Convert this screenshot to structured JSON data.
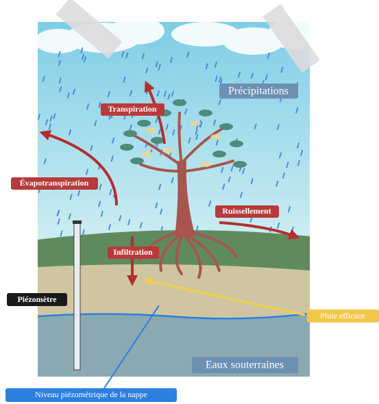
{
  "labels": {
    "precipitations": "Précipitations",
    "transpiration": "Transpiration",
    "evapotranspiration": "Évapotranspiration",
    "ruissellement": "Ruissellement",
    "infiltration": "Infiltration",
    "piezometre": "Piézomètre",
    "pluie_efficace": "Pluie efficace",
    "eaux_souterraines": "Eaux souterraines",
    "niveau": "Niveau piézométrique de la nappe"
  }
}
